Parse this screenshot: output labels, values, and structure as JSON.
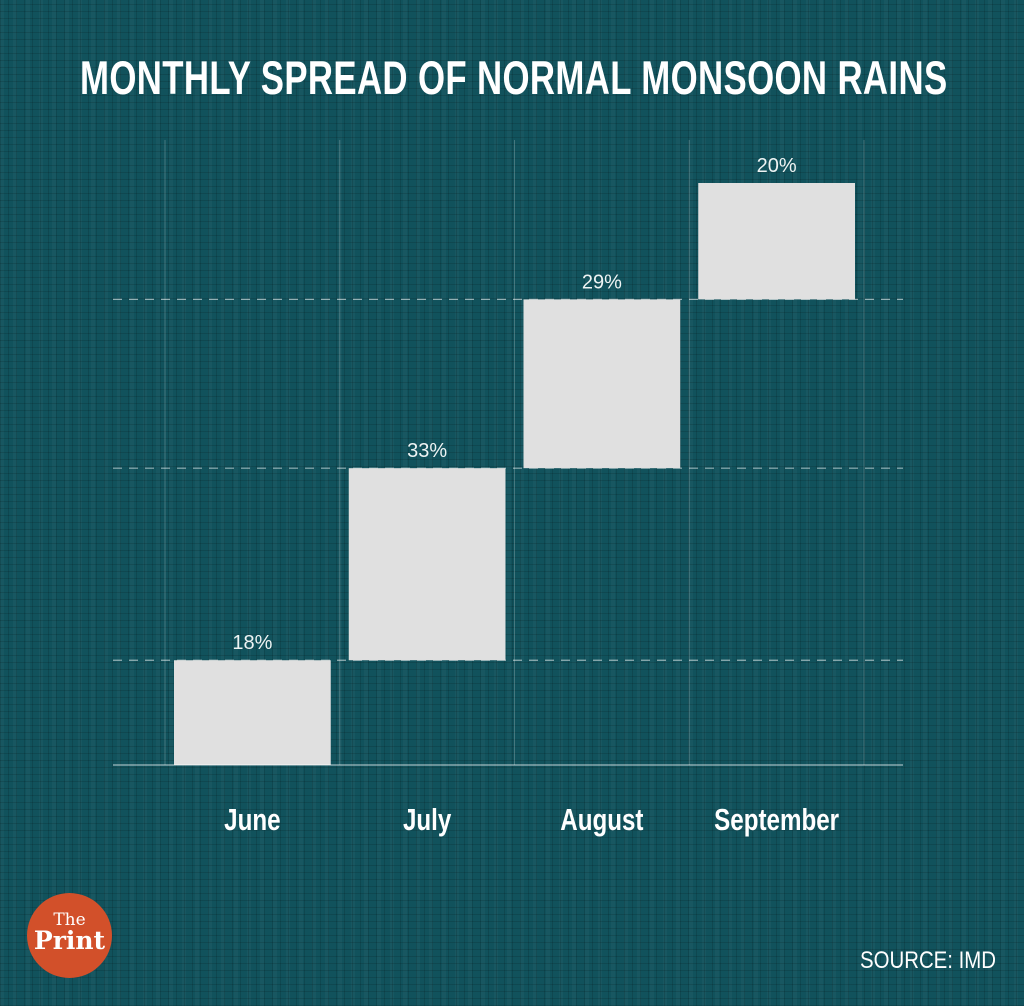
{
  "title": "MONTHLY SPREAD OF NORMAL MONSOON RAINS",
  "source": "SOURCE: IMD",
  "logo": {
    "line1": "The",
    "line2": "Print",
    "color": "#d2502a"
  },
  "chart_data": {
    "type": "waterfall",
    "title": "MONTHLY SPREAD OF NORMAL MONSOON RAINS",
    "categories": [
      "June",
      "July",
      "August",
      "September"
    ],
    "values": [
      18,
      33,
      29,
      20
    ],
    "labels": [
      "18%",
      "33%",
      "29%",
      "20%"
    ],
    "unit": "%",
    "ylim": [
      0,
      100
    ],
    "grid": true,
    "bar_color": "#e0e0e0",
    "background_color": "#11525c"
  }
}
